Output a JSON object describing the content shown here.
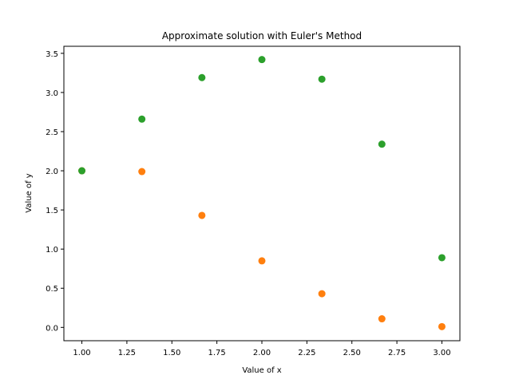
{
  "chart_data": {
    "type": "scatter",
    "title": "Approximate solution with Euler's Method",
    "xlabel": "Value of x",
    "ylabel": "Value of y",
    "xlim": [
      0.9,
      3.1
    ],
    "ylim": [
      -0.17,
      3.59
    ],
    "xticks": [
      1.0,
      1.25,
      1.5,
      1.75,
      2.0,
      2.25,
      2.5,
      2.75,
      3.0
    ],
    "xtick_labels": [
      "1.00",
      "1.25",
      "1.50",
      "1.75",
      "2.00",
      "2.25",
      "2.50",
      "2.75",
      "3.00"
    ],
    "yticks": [
      0.0,
      0.5,
      1.0,
      1.5,
      2.0,
      2.5,
      3.0,
      3.5
    ],
    "ytick_labels": [
      "0.0",
      "0.5",
      "1.0",
      "1.5",
      "2.0",
      "2.5",
      "3.0",
      "3.5"
    ],
    "grid": false,
    "series": [
      {
        "color": "#ff7f0e",
        "x": [
          1.0,
          1.3333,
          1.6667,
          2.0,
          2.3333,
          2.6667,
          3.0
        ],
        "y": [
          2.0,
          1.99,
          1.43,
          0.85,
          0.43,
          0.11,
          0.01
        ]
      },
      {
        "color": "#2ca02c",
        "x": [
          1.0,
          1.3333,
          1.6667,
          2.0,
          2.3333,
          2.6667,
          3.0
        ],
        "y": [
          2.0,
          2.66,
          3.19,
          3.42,
          3.17,
          2.34,
          0.89
        ]
      }
    ]
  }
}
